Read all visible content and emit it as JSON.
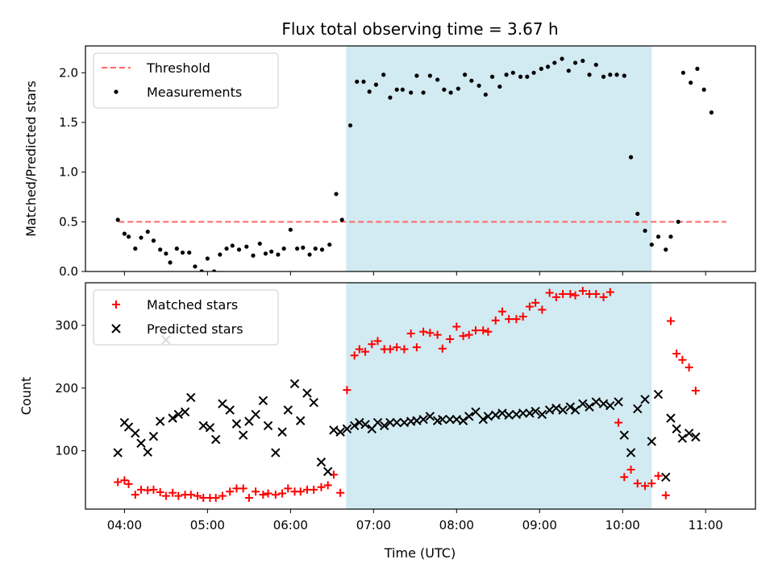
{
  "chart_data": {
    "type": "scatter",
    "title": "Flux total observing time = 3.67 h",
    "xlabel": "Time (UTC)",
    "x_ticks": [
      "04:00",
      "05:00",
      "06:00",
      "07:00",
      "08:00",
      "09:00",
      "10:00",
      "11:00"
    ],
    "xlim_hours": [
      3.53,
      11.6
    ],
    "shaded_span_hours": [
      6.67,
      10.35
    ],
    "colors": {
      "span": "#add8e6",
      "threshold": "#ff6666",
      "measurements": "#000000",
      "matched": "#ff0000",
      "predicted": "#000000"
    },
    "top": {
      "ylabel": "Matched/Predicted stars",
      "ylim": [
        0,
        2.27
      ],
      "y_ticks": [
        "0.0",
        "0.5",
        "1.0",
        "1.5",
        "2.0"
      ],
      "threshold": {
        "name": "Threshold",
        "value": 0.5,
        "x_range": [
          3.93,
          11.25
        ]
      },
      "legend": {
        "loc": "upper-left",
        "entries": [
          "Threshold",
          "Measurements"
        ]
      },
      "series": [
        {
          "name": "Measurements",
          "marker": "dot",
          "points": [
            [
              3.92,
              0.52
            ],
            [
              4.0,
              0.38
            ],
            [
              4.05,
              0.35
            ],
            [
              4.13,
              0.23
            ],
            [
              4.2,
              0.34
            ],
            [
              4.28,
              0.4
            ],
            [
              4.35,
              0.31
            ],
            [
              4.43,
              0.22
            ],
            [
              4.5,
              0.18
            ],
            [
              4.55,
              0.09
            ],
            [
              4.63,
              0.23
            ],
            [
              4.7,
              0.19
            ],
            [
              4.78,
              0.19
            ],
            [
              4.85,
              0.05
            ],
            [
              4.93,
              0.0
            ],
            [
              5.0,
              0.13
            ],
            [
              5.08,
              0.0
            ],
            [
              5.15,
              0.17
            ],
            [
              5.23,
              0.23
            ],
            [
              5.3,
              0.26
            ],
            [
              5.38,
              0.22
            ],
            [
              5.47,
              0.25
            ],
            [
              5.55,
              0.16
            ],
            [
              5.63,
              0.28
            ],
            [
              5.7,
              0.18
            ],
            [
              5.77,
              0.2
            ],
            [
              5.85,
              0.17
            ],
            [
              5.92,
              0.23
            ],
            [
              6.0,
              0.42
            ],
            [
              6.08,
              0.23
            ],
            [
              6.15,
              0.24
            ],
            [
              6.23,
              0.17
            ],
            [
              6.3,
              0.23
            ],
            [
              6.38,
              0.22
            ],
            [
              6.47,
              0.27
            ],
            [
              6.55,
              0.78
            ],
            [
              6.62,
              0.52
            ],
            [
              6.72,
              1.47
            ],
            [
              6.8,
              1.91
            ],
            [
              6.88,
              1.91
            ],
            [
              6.95,
              1.81
            ],
            [
              7.03,
              1.88
            ],
            [
              7.12,
              1.98
            ],
            [
              7.2,
              1.75
            ],
            [
              7.28,
              1.83
            ],
            [
              7.35,
              1.83
            ],
            [
              7.45,
              1.8
            ],
            [
              7.52,
              1.97
            ],
            [
              7.6,
              1.8
            ],
            [
              7.68,
              1.97
            ],
            [
              7.77,
              1.93
            ],
            [
              7.85,
              1.83
            ],
            [
              7.93,
              1.8
            ],
            [
              8.02,
              1.84
            ],
            [
              8.1,
              1.98
            ],
            [
              8.18,
              1.92
            ],
            [
              8.27,
              1.87
            ],
            [
              8.35,
              1.78
            ],
            [
              8.43,
              1.96
            ],
            [
              8.52,
              1.86
            ],
            [
              8.6,
              1.98
            ],
            [
              8.68,
              2.0
            ],
            [
              8.77,
              1.96
            ],
            [
              8.85,
              1.96
            ],
            [
              8.93,
              2.0
            ],
            [
              9.02,
              2.04
            ],
            [
              9.1,
              2.06
            ],
            [
              9.18,
              2.1
            ],
            [
              9.27,
              2.14
            ],
            [
              9.35,
              2.02
            ],
            [
              9.43,
              2.1
            ],
            [
              9.52,
              2.12
            ],
            [
              9.6,
              1.98
            ],
            [
              9.68,
              2.08
            ],
            [
              9.77,
              1.96
            ],
            [
              9.85,
              1.98
            ],
            [
              9.93,
              1.98
            ],
            [
              10.02,
              1.97
            ],
            [
              10.1,
              1.15
            ],
            [
              10.18,
              0.58
            ],
            [
              10.27,
              0.41
            ],
            [
              10.35,
              0.27
            ],
            [
              10.43,
              0.35
            ],
            [
              10.52,
              0.22
            ],
            [
              10.58,
              0.35
            ],
            [
              10.67,
              0.5
            ],
            [
              10.73,
              2.0
            ],
            [
              10.82,
              1.9
            ],
            [
              10.9,
              2.04
            ],
            [
              10.98,
              1.83
            ],
            [
              11.07,
              1.6
            ]
          ]
        }
      ]
    },
    "bottom": {
      "ylabel": "Count",
      "ylim": [
        7,
        368
      ],
      "y_ticks": [
        "100",
        "200",
        "300"
      ],
      "legend": {
        "loc": "upper-left",
        "entries": [
          "Matched stars",
          "Predicted stars"
        ]
      },
      "series": [
        {
          "name": "Matched stars",
          "marker": "plus",
          "points": [
            [
              3.92,
              50
            ],
            [
              4.0,
              53
            ],
            [
              4.05,
              47
            ],
            [
              4.13,
              30
            ],
            [
              4.2,
              38
            ],
            [
              4.28,
              37
            ],
            [
              4.35,
              38
            ],
            [
              4.43,
              34
            ],
            [
              4.5,
              28
            ],
            [
              4.58,
              33
            ],
            [
              4.65,
              28
            ],
            [
              4.73,
              30
            ],
            [
              4.8,
              30
            ],
            [
              4.88,
              28
            ],
            [
              4.95,
              25
            ],
            [
              5.03,
              25
            ],
            [
              5.1,
              25
            ],
            [
              5.18,
              28
            ],
            [
              5.27,
              35
            ],
            [
              5.35,
              40
            ],
            [
              5.43,
              40
            ],
            [
              5.5,
              25
            ],
            [
              5.58,
              35
            ],
            [
              5.67,
              30
            ],
            [
              5.73,
              32
            ],
            [
              5.82,
              30
            ],
            [
              5.9,
              32
            ],
            [
              5.97,
              40
            ],
            [
              6.05,
              35
            ],
            [
              6.12,
              35
            ],
            [
              6.2,
              38
            ],
            [
              6.28,
              38
            ],
            [
              6.37,
              42
            ],
            [
              6.45,
              45
            ],
            [
              6.52,
              62
            ],
            [
              6.6,
              33
            ],
            [
              6.68,
              197
            ],
            [
              6.77,
              252
            ],
            [
              6.83,
              262
            ],
            [
              6.9,
              258
            ],
            [
              6.98,
              270
            ],
            [
              7.05,
              275
            ],
            [
              7.13,
              262
            ],
            [
              7.2,
              262
            ],
            [
              7.28,
              265
            ],
            [
              7.37,
              262
            ],
            [
              7.45,
              287
            ],
            [
              7.52,
              265
            ],
            [
              7.6,
              290
            ],
            [
              7.68,
              288
            ],
            [
              7.77,
              285
            ],
            [
              7.83,
              263
            ],
            [
              7.92,
              278
            ],
            [
              8.0,
              298
            ],
            [
              8.08,
              283
            ],
            [
              8.15,
              285
            ],
            [
              8.23,
              292
            ],
            [
              8.32,
              292
            ],
            [
              8.38,
              290
            ],
            [
              8.47,
              308
            ],
            [
              8.55,
              322
            ],
            [
              8.63,
              310
            ],
            [
              8.72,
              310
            ],
            [
              8.8,
              314
            ],
            [
              8.88,
              330
            ],
            [
              8.95,
              336
            ],
            [
              9.03,
              325
            ],
            [
              9.12,
              352
            ],
            [
              9.2,
              345
            ],
            [
              9.28,
              350
            ],
            [
              9.37,
              350
            ],
            [
              9.43,
              348
            ],
            [
              9.52,
              355
            ],
            [
              9.6,
              350
            ],
            [
              9.68,
              350
            ],
            [
              9.77,
              345
            ],
            [
              9.85,
              353
            ],
            [
              9.95,
              145
            ],
            [
              10.02,
              58
            ],
            [
              10.1,
              70
            ],
            [
              10.18,
              48
            ],
            [
              10.27,
              44
            ],
            [
              10.35,
              48
            ],
            [
              10.43,
              60
            ],
            [
              10.52,
              29
            ],
            [
              10.58,
              307
            ],
            [
              10.65,
              255
            ],
            [
              10.72,
              245
            ],
            [
              10.8,
              233
            ],
            [
              10.88,
              196
            ]
          ]
        },
        {
          "name": "Predicted stars",
          "marker": "x",
          "points": [
            [
              3.92,
              97
            ],
            [
              4.0,
              145
            ],
            [
              4.05,
              138
            ],
            [
              4.13,
              128
            ],
            [
              4.2,
              112
            ],
            [
              4.28,
              98
            ],
            [
              4.35,
              123
            ],
            [
              4.43,
              147
            ],
            [
              4.5,
              277
            ],
            [
              4.58,
              152
            ],
            [
              4.65,
              158
            ],
            [
              4.73,
              162
            ],
            [
              4.8,
              185
            ],
            [
              4.95,
              140
            ],
            [
              5.03,
              137
            ],
            [
              5.1,
              118
            ],
            [
              5.18,
              175
            ],
            [
              5.27,
              165
            ],
            [
              5.35,
              143
            ],
            [
              5.43,
              125
            ],
            [
              5.5,
              147
            ],
            [
              5.58,
              158
            ],
            [
              5.67,
              180
            ],
            [
              5.73,
              140
            ],
            [
              5.82,
              97
            ],
            [
              5.9,
              130
            ],
            [
              5.97,
              165
            ],
            [
              6.05,
              207
            ],
            [
              6.12,
              148
            ],
            [
              6.2,
              192
            ],
            [
              6.28,
              177
            ],
            [
              6.37,
              82
            ],
            [
              6.45,
              67
            ],
            [
              6.52,
              133
            ],
            [
              6.6,
              130
            ],
            [
              6.68,
              135
            ],
            [
              6.77,
              140
            ],
            [
              6.83,
              145
            ],
            [
              6.9,
              142
            ],
            [
              6.98,
              135
            ],
            [
              7.05,
              145
            ],
            [
              7.13,
              140
            ],
            [
              7.2,
              145
            ],
            [
              7.28,
              145
            ],
            [
              7.37,
              145
            ],
            [
              7.45,
              147
            ],
            [
              7.52,
              148
            ],
            [
              7.6,
              150
            ],
            [
              7.68,
              155
            ],
            [
              7.77,
              148
            ],
            [
              7.83,
              150
            ],
            [
              7.92,
              150
            ],
            [
              8.0,
              150
            ],
            [
              8.08,
              148
            ],
            [
              8.15,
              155
            ],
            [
              8.23,
              162
            ],
            [
              8.32,
              150
            ],
            [
              8.38,
              155
            ],
            [
              8.47,
              157
            ],
            [
              8.55,
              160
            ],
            [
              8.63,
              157
            ],
            [
              8.72,
              158
            ],
            [
              8.8,
              160
            ],
            [
              8.88,
              160
            ],
            [
              8.95,
              163
            ],
            [
              9.03,
              158
            ],
            [
              9.12,
              165
            ],
            [
              9.2,
              168
            ],
            [
              9.28,
              165
            ],
            [
              9.37,
              170
            ],
            [
              9.43,
              165
            ],
            [
              9.52,
              175
            ],
            [
              9.6,
              170
            ],
            [
              9.68,
              178
            ],
            [
              9.77,
              175
            ],
            [
              9.85,
              172
            ],
            [
              9.95,
              178
            ],
            [
              10.02,
              125
            ],
            [
              10.1,
              97
            ],
            [
              10.18,
              167
            ],
            [
              10.27,
              182
            ],
            [
              10.35,
              115
            ],
            [
              10.43,
              190
            ],
            [
              10.52,
              58
            ],
            [
              10.58,
              152
            ],
            [
              10.65,
              135
            ],
            [
              10.72,
              120
            ],
            [
              10.8,
              128
            ],
            [
              10.88,
              122
            ]
          ]
        }
      ]
    }
  }
}
